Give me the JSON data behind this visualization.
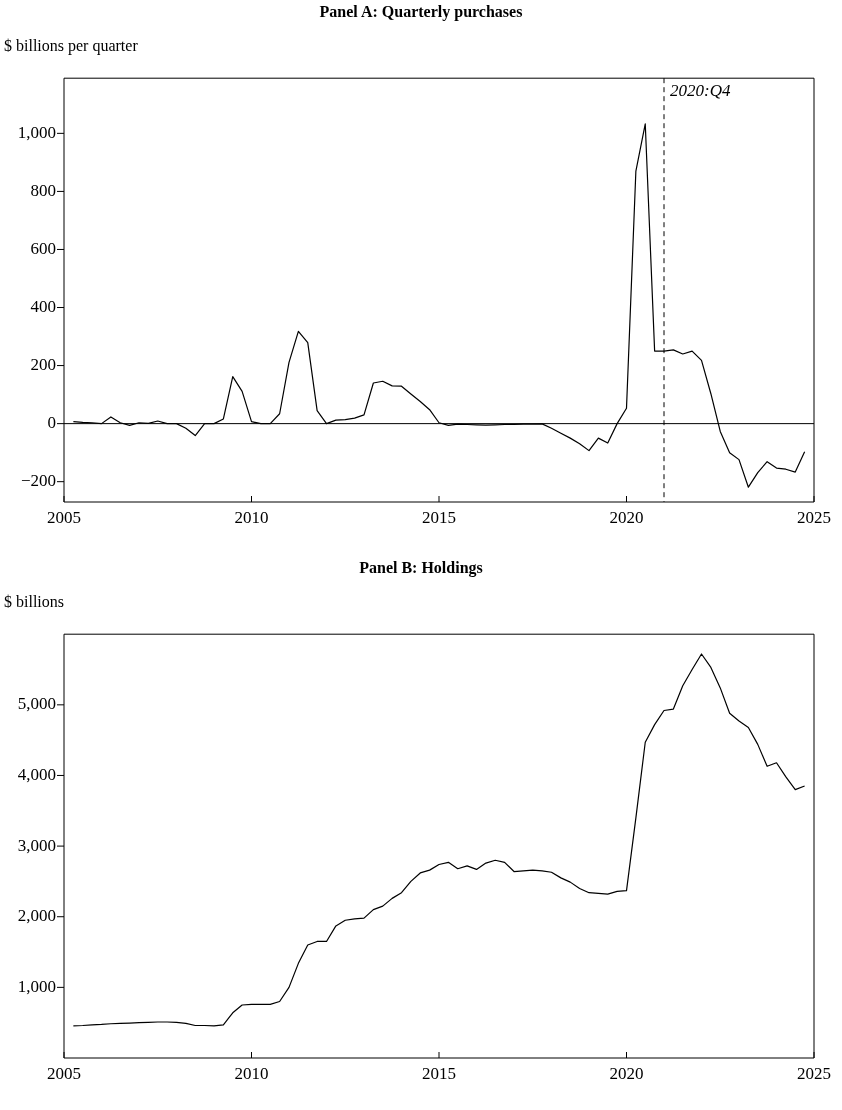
{
  "chart_data": [
    {
      "type": "line",
      "title": "Panel A: Quarterly purchases",
      "ylabel": "$ billions per quarter",
      "x": [
        2005.25,
        2005.5,
        2005.75,
        2006,
        2006.25,
        2006.5,
        2006.75,
        2007,
        2007.25,
        2007.5,
        2007.75,
        2008,
        2008.25,
        2008.5,
        2008.75,
        2009,
        2009.25,
        2009.5,
        2009.75,
        2010,
        2010.25,
        2010.5,
        2010.75,
        2011,
        2011.25,
        2011.5,
        2011.75,
        2012,
        2012.25,
        2012.5,
        2012.75,
        2013,
        2013.25,
        2013.5,
        2013.75,
        2014,
        2014.25,
        2014.5,
        2014.75,
        2015,
        2015.25,
        2015.5,
        2015.75,
        2016,
        2016.25,
        2016.5,
        2016.75,
        2017,
        2017.25,
        2017.5,
        2017.75,
        2018,
        2018.25,
        2018.5,
        2018.75,
        2019,
        2019.25,
        2019.5,
        2019.75,
        2020,
        2020.25,
        2020.5,
        2020.75,
        2021,
        2021.25,
        2021.5,
        2021.75,
        2022,
        2022.25,
        2022.5,
        2022.75,
        2023,
        2023.25,
        2023.5,
        2023.75,
        2024,
        2024.25,
        2024.5,
        2024.75
      ],
      "series": [
        {
          "color": "#000000",
          "values": [
            7,
            4,
            3,
            0,
            23,
            3,
            -6,
            3,
            1,
            9,
            0,
            0,
            -16,
            -41,
            0,
            0,
            16,
            162,
            111,
            7,
            0,
            0,
            34,
            211,
            318,
            279,
            45,
            0,
            12,
            14,
            19,
            30,
            140,
            146,
            130,
            129,
            102,
            76,
            48,
            3,
            -6,
            -2,
            -3,
            -4,
            -5,
            -4,
            -3,
            -3,
            -2,
            -2,
            -1,
            -16,
            -33,
            -50,
            -69,
            -93,
            -50,
            -67,
            0,
            53,
            870,
            1033,
            250,
            250,
            254,
            240,
            250,
            218,
            103,
            -27,
            -100,
            -124,
            -219,
            -169,
            -131,
            -153,
            -157,
            -167,
            -97
          ]
        }
      ],
      "xlim": [
        2005,
        2025
      ],
      "xticks": [
        2005,
        2010,
        2015,
        2020,
        2025
      ],
      "ylim": [
        -270,
        1190
      ],
      "yticks": [
        {
          "value": -200,
          "label": "−200"
        },
        0,
        200,
        400,
        600,
        800,
        {
          "value": 1000,
          "label": "1,000"
        }
      ],
      "ref_lines": [
        {
          "axis": "y",
          "value": 0,
          "line_style": "solid"
        },
        {
          "axis": "x",
          "value": 2021,
          "label": "2020:Q4",
          "line_style": "dashed"
        }
      ]
    },
    {
      "type": "line",
      "title": "Panel B: Holdings",
      "ylabel": "$ billions",
      "x": [
        2005.25,
        2005.5,
        2005.75,
        2006,
        2006.25,
        2006.5,
        2006.75,
        2007,
        2007.25,
        2007.5,
        2007.75,
        2008,
        2008.25,
        2008.5,
        2008.75,
        2009,
        2009.25,
        2009.5,
        2009.75,
        2010,
        2010.25,
        2010.5,
        2010.75,
        2011,
        2011.25,
        2011.5,
        2011.75,
        2012,
        2012.25,
        2012.5,
        2012.75,
        2013,
        2013.25,
        2013.5,
        2013.75,
        2014,
        2014.25,
        2014.5,
        2014.75,
        2015,
        2015.25,
        2015.5,
        2015.75,
        2016,
        2016.25,
        2016.5,
        2016.75,
        2017,
        2017.25,
        2017.5,
        2017.75,
        2018,
        2018.25,
        2018.5,
        2018.75,
        2019,
        2019.25,
        2019.5,
        2019.75,
        2020,
        2020.25,
        2020.5,
        2020.75,
        2021,
        2021.25,
        2021.5,
        2021.75,
        2022,
        2022.25,
        2022.5,
        2022.75,
        2023,
        2023.25,
        2023.5,
        2023.75,
        2024,
        2024.25,
        2024.5,
        2024.75
      ],
      "series": [
        {
          "color": "#000000",
          "values": [
            455,
            460,
            470,
            475,
            485,
            490,
            495,
            500,
            505,
            510,
            510,
            505,
            490,
            460,
            460,
            455,
            470,
            640,
            750,
            760,
            760,
            760,
            800,
            1000,
            1340,
            1600,
            1650,
            1650,
            1870,
            1950,
            1970,
            1980,
            2100,
            2150,
            2260,
            2340,
            2500,
            2620,
            2660,
            2740,
            2770,
            2680,
            2720,
            2670,
            2760,
            2800,
            2770,
            2640,
            2650,
            2660,
            2650,
            2630,
            2550,
            2490,
            2400,
            2340,
            2330,
            2320,
            2360,
            2370,
            3400,
            4470,
            4720,
            4920,
            4940,
            5270,
            5500,
            5720,
            5530,
            5240,
            4880,
            4770,
            4680,
            4440,
            4130,
            4180,
            3980,
            3800,
            3850
          ]
        }
      ],
      "xlim": [
        2005,
        2025
      ],
      "xticks": [
        2005,
        2010,
        2015,
        2020,
        2025
      ],
      "ylim": [
        0,
        6000
      ],
      "yticks": [
        {
          "value": 1000,
          "label": "1,000"
        },
        {
          "value": 2000,
          "label": "2,000"
        },
        {
          "value": 3000,
          "label": "3,000"
        },
        {
          "value": 4000,
          "label": "4,000"
        },
        {
          "value": 5000,
          "label": "5,000"
        }
      ]
    }
  ]
}
